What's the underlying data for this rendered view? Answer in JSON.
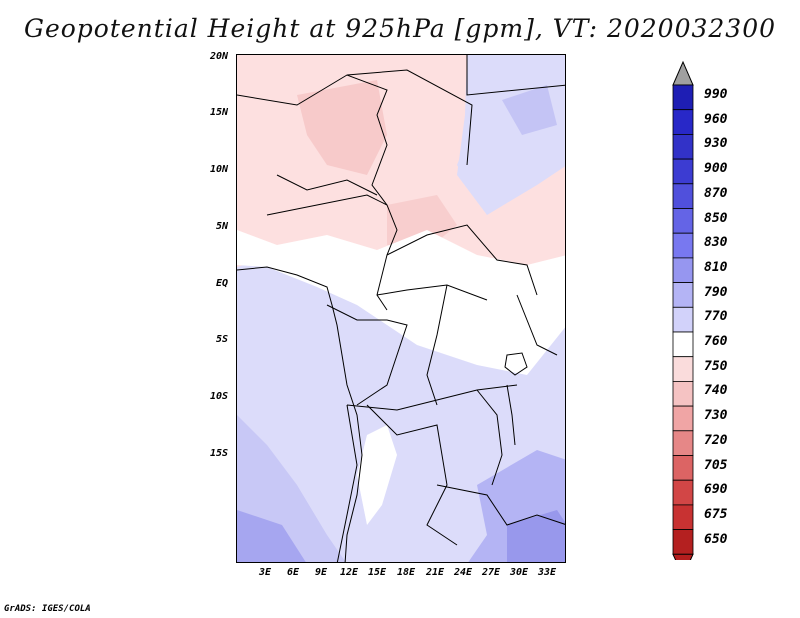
{
  "title": "Geopotential Height at 925hPa [gpm], VT: 2020032300",
  "footer": "GrADS: IGES/COLA",
  "map": {
    "lat_labels": [
      "20N",
      "15N",
      "10N",
      "5N",
      "EQ",
      "5S",
      "10S",
      "15S"
    ],
    "lon_labels": [
      "3E",
      "6E",
      "9E",
      "12E",
      "15E",
      "18E",
      "21E",
      "24E",
      "27E",
      "30E",
      "33E"
    ]
  },
  "legend": {
    "levels": [
      "990",
      "960",
      "930",
      "900",
      "870",
      "850",
      "830",
      "810",
      "790",
      "770",
      "760",
      "750",
      "740",
      "730",
      "720",
      "705",
      "690",
      "675",
      "650"
    ],
    "colors": [
      "#1e1eb4",
      "#2828c8",
      "#3232c8",
      "#3c3cd2",
      "#5050dc",
      "#6464e6",
      "#7878f0",
      "#9696f0",
      "#b4b4f5",
      "#d2d2fa",
      "#ffffff",
      "#fadcdc",
      "#f5c3c3",
      "#f0a5a5",
      "#e68787",
      "#dc6464",
      "#d24646",
      "#c83232",
      "#b42020"
    ],
    "top_color": "#a0a0a0",
    "bottom_color": "#b41e1e"
  }
}
